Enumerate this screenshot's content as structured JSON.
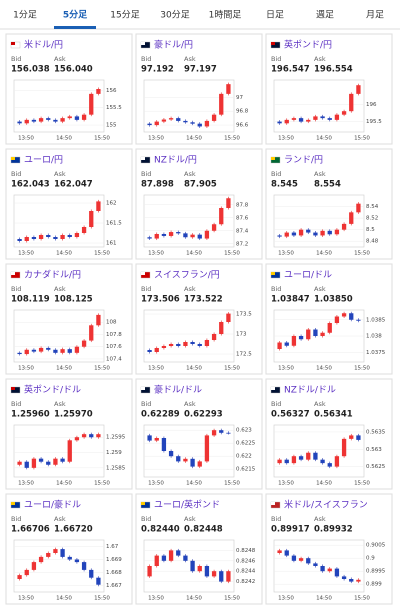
{
  "tabs": [
    "1分足",
    "5分足",
    "15分足",
    "30分足",
    "1時間足",
    "日足",
    "週足",
    "月足"
  ],
  "panels": [
    {
      "title": "米ドル/円",
      "bid_label": "Bid",
      "ask_label": "Ask",
      "bid": "156.038",
      "ask": "156.040",
      "chart": {
        "type": "candlestick",
        "values": [
          155.1,
          155.05,
          155.15,
          155.1,
          155.2,
          155.15,
          155.1,
          155.2,
          155.25,
          155.15,
          155.3,
          155.9,
          156.04
        ],
        "ylim": [
          154.8,
          156.3
        ],
        "yticks": [
          156,
          155.5,
          155
        ],
        "x_labels": [
          "13:50",
          "14:50",
          "15:50"
        ]
      }
    },
    {
      "title": "豪ドル/円",
      "bid_label": "Bid",
      "ask_label": "Ask",
      "bid": "97.192",
      "ask": "97.197",
      "chart": {
        "type": "candlestick",
        "values": [
          96.62,
          96.6,
          96.65,
          96.68,
          96.7,
          96.66,
          96.64,
          96.62,
          96.58,
          96.66,
          96.75,
          97.05,
          97.19
        ],
        "ylim": [
          96.5,
          97.25
        ],
        "yticks": [
          97,
          96.8,
          96.6
        ],
        "x_labels": [
          "13:50",
          "14:50",
          "15:50"
        ]
      }
    },
    {
      "title": "英ポンド/円",
      "bid_label": "Bid",
      "ask_label": "Ask",
      "bid": "196.547",
      "ask": "196.554",
      "chart": {
        "type": "candlestick",
        "values": [
          195.5,
          195.45,
          195.55,
          195.6,
          195.5,
          195.55,
          195.65,
          195.6,
          195.55,
          195.7,
          195.8,
          196.3,
          196.55
        ],
        "ylim": [
          195.2,
          196.7
        ],
        "yticks": [
          196,
          195.5
        ],
        "x_labels": [
          "13:50",
          "14:50",
          "15:50"
        ]
      }
    },
    {
      "title": "ユーロ/円",
      "bid_label": "Bid",
      "ask_label": "Ask",
      "bid": "162.043",
      "ask": "162.047",
      "chart": {
        "type": "candlestick",
        "values": [
          161.1,
          161.05,
          161.15,
          161.1,
          161.2,
          161.15,
          161.1,
          161.2,
          161.15,
          161.25,
          161.4,
          161.8,
          162.04
        ],
        "ylim": [
          160.9,
          162.2
        ],
        "yticks": [
          162,
          161.5,
          161
        ],
        "x_labels": [
          "13:50",
          "14:50",
          "15:50"
        ]
      }
    },
    {
      "title": "NZドル/円",
      "bid_label": "Bid",
      "ask_label": "Ask",
      "bid": "87.898",
      "ask": "87.905",
      "chart": {
        "type": "candlestick",
        "values": [
          87.3,
          87.28,
          87.35,
          87.32,
          87.38,
          87.36,
          87.3,
          87.34,
          87.28,
          87.4,
          87.5,
          87.75,
          87.9
        ],
        "ylim": [
          87.15,
          87.95
        ],
        "yticks": [
          87.8,
          87.6,
          87.4,
          87.2
        ],
        "x_labels": [
          "13:50",
          "14:50",
          "15:50"
        ]
      }
    },
    {
      "title": "ランド/円",
      "bid_label": "Bid",
      "ask_label": "Ask",
      "bid": "8.545",
      "ask": "8.554",
      "chart": {
        "type": "candlestick",
        "values": [
          8.49,
          8.488,
          8.495,
          8.49,
          8.5,
          8.495,
          8.49,
          8.498,
          8.492,
          8.5,
          8.51,
          8.53,
          8.545
        ],
        "ylim": [
          8.47,
          8.56
        ],
        "yticks": [
          8.54,
          8.52,
          8.5,
          8.48
        ],
        "x_labels": [
          "13:50",
          "14:50",
          "15:50"
        ]
      }
    },
    {
      "title": "カナダドル/円",
      "bid_label": "Bid",
      "ask_label": "Ask",
      "bid": "108.119",
      "ask": "108.125",
      "chart": {
        "type": "candlestick",
        "values": [
          107.5,
          107.48,
          107.55,
          107.52,
          107.58,
          107.55,
          107.5,
          107.56,
          107.5,
          107.6,
          107.7,
          107.95,
          108.12
        ],
        "ylim": [
          107.35,
          108.2
        ],
        "yticks": [
          108,
          107.8,
          107.6,
          107.4
        ],
        "x_labels": [
          "13:50",
          "14:50",
          "15:50"
        ]
      }
    },
    {
      "title": "スイスフラン/円",
      "bid_label": "Bid",
      "ask_label": "Ask",
      "bid": "173.506",
      "ask": "173.522",
      "chart": {
        "type": "candlestick",
        "values": [
          172.6,
          172.55,
          172.65,
          172.7,
          172.75,
          172.7,
          172.8,
          172.75,
          172.7,
          172.85,
          173,
          173.3,
          173.51
        ],
        "ylim": [
          172.3,
          173.6
        ],
        "yticks": [
          173.5,
          173,
          172.5
        ],
        "x_labels": [
          "13:50",
          "14:50",
          "15:50"
        ]
      }
    },
    {
      "title": "ユーロ/ドル",
      "bid_label": "Bid",
      "ask_label": "Ask",
      "bid": "1.03847",
      "ask": "1.03850",
      "chart": {
        "type": "candlestick",
        "values": [
          1.0376,
          1.0378,
          1.0377,
          1.038,
          1.0379,
          1.0382,
          1.038,
          1.0381,
          1.0384,
          1.0386,
          1.0387,
          1.0385,
          1.03847
        ],
        "ylim": [
          1.0372,
          1.0388
        ],
        "yticks": [
          1.0385,
          1.038,
          1.0375
        ],
        "x_labels": [
          "13:50",
          "14:50",
          "15:50"
        ]
      }
    },
    {
      "title": "英ポンド/ドル",
      "bid_label": "Bid",
      "ask_label": "Ask",
      "bid": "1.25960",
      "ask": "1.25970",
      "chart": {
        "type": "candlestick",
        "values": [
          1.2586,
          1.2587,
          1.2585,
          1.2588,
          1.2587,
          1.2586,
          1.2588,
          1.2587,
          1.2594,
          1.2595,
          1.2596,
          1.2595,
          1.2596
        ],
        "ylim": [
          1.2582,
          1.2599
        ],
        "yticks": [
          1.2595,
          1.259,
          1.2585
        ],
        "x_labels": [
          "13:50",
          "14:50",
          "15:50"
        ]
      }
    },
    {
      "title": "豪ドル/ドル",
      "bid_label": "Bid",
      "ask_label": "Ask",
      "bid": "0.62289",
      "ask": "0.62293",
      "chart": {
        "type": "candlestick",
        "values": [
          0.6228,
          0.6226,
          0.6227,
          0.6222,
          0.622,
          0.6218,
          0.6219,
          0.6216,
          0.6218,
          0.6228,
          0.623,
          0.6229,
          0.62289
        ],
        "ylim": [
          0.6212,
          0.6232
        ],
        "yticks": [
          0.623,
          0.6225,
          0.622,
          0.6215
        ],
        "x_labels": [
          "13:50",
          "14:50",
          "15:50"
        ]
      }
    },
    {
      "title": "NZドル/ドル",
      "bid_label": "Bid",
      "ask_label": "Ask",
      "bid": "0.56327",
      "ask": "0.56341",
      "chart": {
        "type": "candlestick",
        "values": [
          0.5626,
          0.5627,
          0.5626,
          0.5628,
          0.5627,
          0.5629,
          0.5627,
          0.5626,
          0.5625,
          0.5628,
          0.5633,
          0.5634,
          0.56327
        ],
        "ylim": [
          0.5622,
          0.5637
        ],
        "yticks": [
          0.5635,
          0.563,
          0.5625
        ],
        "x_labels": [
          "13:50",
          "14:50",
          "15:50"
        ]
      }
    },
    {
      "title": "ユーロ/豪ドル",
      "bid_label": "Bid",
      "ask_label": "Ask",
      "bid": "1.66706",
      "ask": "1.66720",
      "chart": {
        "type": "candlestick",
        "values": [
          1.6675,
          1.6678,
          1.6682,
          1.6688,
          1.6692,
          1.6695,
          1.6698,
          1.6692,
          1.669,
          1.6688,
          1.6682,
          1.6676,
          1.66706
        ],
        "ylim": [
          1.6665,
          1.6705
        ],
        "yticks": [
          1.67,
          1.669,
          1.668,
          1.667
        ],
        "x_labels": [
          "13:50",
          "14:50",
          "15:50"
        ]
      }
    },
    {
      "title": "ユーロ/英ポンド",
      "bid_label": "Bid",
      "ask_label": "Ask",
      "bid": "0.82440",
      "ask": "0.82448",
      "chart": {
        "type": "candlestick",
        "values": [
          0.8243,
          0.8245,
          0.8247,
          0.8246,
          0.8248,
          0.8247,
          0.8246,
          0.8244,
          0.8245,
          0.8243,
          0.8244,
          0.8242,
          0.8244
        ],
        "ylim": [
          0.824,
          0.825
        ],
        "yticks": [
          0.8248,
          0.8246,
          0.8244,
          0.8242
        ],
        "x_labels": [
          "13:50",
          "14:50",
          "15:50"
        ]
      }
    },
    {
      "title": "米ドル/スイスフラン",
      "bid_label": "Bid",
      "ask_label": "Ask",
      "bid": "0.89917",
      "ask": "0.89932",
      "chart": {
        "type": "candlestick",
        "values": [
          0.9002,
          0.9003,
          0.9001,
          0.8999,
          0.9,
          0.8998,
          0.8997,
          0.8995,
          0.8996,
          0.8993,
          0.8992,
          0.8991,
          0.89917
        ],
        "ylim": [
          0.8987,
          0.9007
        ],
        "yticks": [
          0.9005,
          0.9,
          0.8995,
          0.899
        ],
        "x_labels": [
          "13:50",
          "14:50",
          "15:50"
        ]
      }
    }
  ]
}
